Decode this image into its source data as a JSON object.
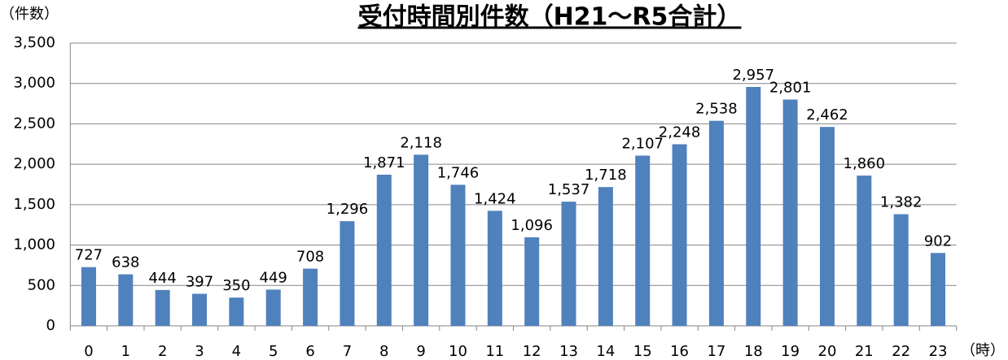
{
  "chart_data": {
    "type": "bar",
    "title": "受付時間別件数（H21～R5合計）",
    "y_label": "（件数）",
    "x_label": "（時）",
    "categories": [
      "0",
      "1",
      "2",
      "3",
      "4",
      "5",
      "6",
      "7",
      "8",
      "9",
      "10",
      "11",
      "12",
      "13",
      "14",
      "15",
      "16",
      "17",
      "18",
      "19",
      "20",
      "21",
      "22",
      "23"
    ],
    "values": [
      727,
      638,
      444,
      397,
      350,
      449,
      708,
      1296,
      1871,
      2118,
      1746,
      1424,
      1096,
      1537,
      1718,
      2107,
      2248,
      2538,
      2957,
      2801,
      2462,
      1860,
      1382,
      902
    ],
    "value_labels": [
      "727",
      "638",
      "444",
      "397",
      "350",
      "449",
      "708",
      "1,296",
      "1,871",
      "2,118",
      "1,746",
      "1,424",
      "1,096",
      "1,537",
      "1,718",
      "2,107",
      "2,248",
      "2,538",
      "2,957",
      "2,801",
      "2,462",
      "1,860",
      "1,382",
      "902"
    ],
    "color": "#4f81bd",
    "ylim": [
      0,
      3500
    ],
    "yticks": [
      0,
      500,
      {
        "value": 1000,
        "label": "1,000"
      },
      {
        "value": 1500,
        "label": "1,500"
      },
      {
        "value": 2000,
        "label": "2,000"
      },
      {
        "value": 2500,
        "label": "2,500"
      },
      {
        "value": 3000,
        "label": "3,000"
      },
      {
        "value": 3500,
        "label": "3,500"
      }
    ],
    "grid": true
  }
}
